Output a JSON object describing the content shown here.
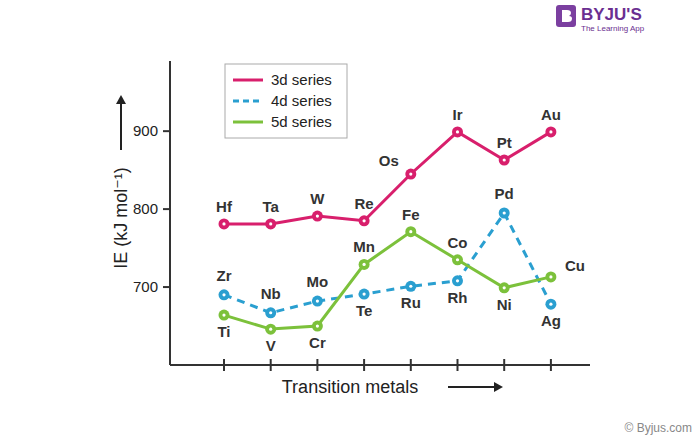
{
  "chart_data": {
    "type": "line",
    "x_label": "Transition metals",
    "y_label": "IE (kJ mol⁻¹)",
    "annotations": [
      "BYJU'S",
      "The Learning App",
      "© Byjus.com"
    ],
    "categories": [
      null,
      null,
      null,
      null,
      null,
      null,
      null,
      null
    ],
    "ylim": [
      600,
      990
    ],
    "yticks": [
      700,
      800,
      900
    ],
    "grid": false,
    "legend": "top-left",
    "series": [
      {
        "name": "3d series",
        "color": "#d81f6c",
        "line_style": "solid",
        "marker": "circle",
        "values": [
          781,
          781,
          791,
          785,
          845,
          899,
          863,
          899
        ],
        "point_labels": [
          "Hf",
          "Ta",
          "W",
          "Re",
          "Os",
          "Ir",
          "Pt",
          "Au"
        ]
      },
      {
        "name": "4d series",
        "color": "#2a9fd0",
        "line_style": "dashed",
        "marker": "circle",
        "values": [
          690,
          667,
          682,
          691,
          701,
          708,
          795,
          678
        ],
        "point_labels": [
          "Zr",
          "Nb",
          "Mo",
          "Te",
          "Ru",
          "Rh",
          "Pd",
          "Ag"
        ]
      },
      {
        "name": "5d series",
        "color": "#7cc13b",
        "line_style": "solid",
        "marker": "circle",
        "values": [
          664,
          646,
          650,
          729,
          771,
          735,
          699,
          713
        ],
        "point_labels": [
          "Ti",
          "V",
          "Cr",
          "Mn",
          "Fe",
          "Co",
          "Ni",
          "Cu"
        ]
      }
    ]
  }
}
